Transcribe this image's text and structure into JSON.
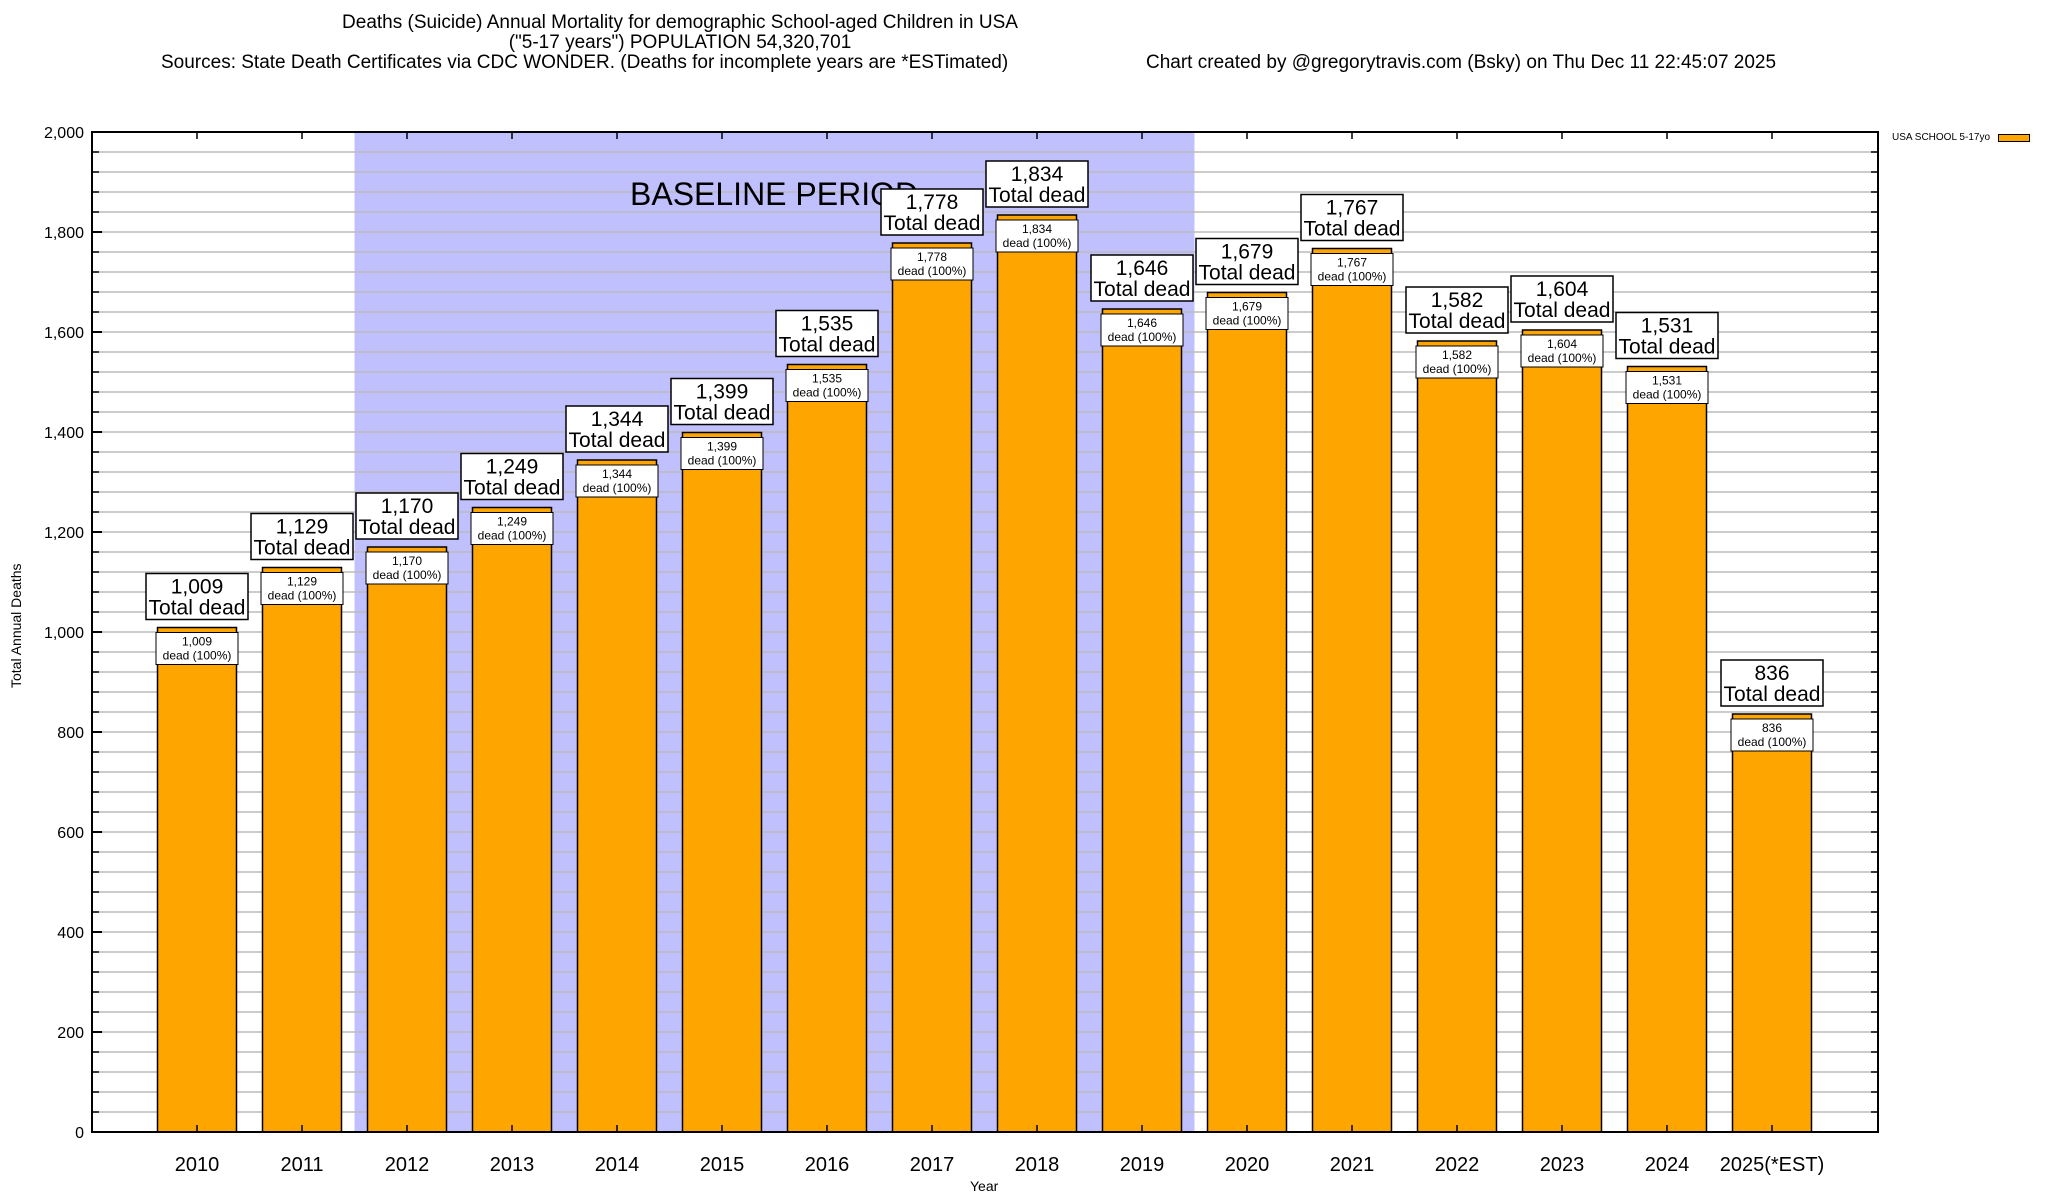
{
  "chart_data": {
    "type": "bar",
    "title": "Deaths (Suicide) Annual Mortality for demographic School-aged Children in USA",
    "subtitle": "(\"5-17 years\") POPULATION 54,320,701",
    "sources": "Sources: State Death Certificates via CDC WONDER. (Deaths for incomplete years are *ESTimated)",
    "credit": "Chart created by @gregorytravis.com (Bsky) on Thu Dec 11 22:45:07 2025",
    "xlabel": "Year",
    "ylabel": "Total Annual Deaths",
    "ylim": [
      0,
      2000
    ],
    "y_major_ticks": [
      0,
      200,
      400,
      600,
      800,
      1000,
      1200,
      1400,
      1600,
      1800,
      2000
    ],
    "y_tick_labels": [
      "0",
      "200",
      "400",
      "600",
      "800",
      "1,000",
      "1,200",
      "1,400",
      "1,600",
      "1,800",
      "2,000"
    ],
    "y_minor_step": 40,
    "grid": true,
    "legend": {
      "position": "top-right",
      "entries": [
        {
          "label": "USA SCHOOL 5-17yo",
          "color": "#FFA500"
        }
      ]
    },
    "categories": [
      "2010",
      "2011",
      "2012",
      "2013",
      "2014",
      "2015",
      "2016",
      "2017",
      "2018",
      "2019",
      "2020",
      "2021",
      "2022",
      "2023",
      "2024",
      "2025(*EST)"
    ],
    "series": [
      {
        "name": "USA SCHOOL 5-17yo",
        "color": "#FFA500",
        "values": [
          1009,
          1129,
          1170,
          1249,
          1344,
          1399,
          1535,
          1778,
          1834,
          1646,
          1679,
          1767,
          1582,
          1604,
          1531,
          836
        ]
      }
    ],
    "total_labels": [
      "1,009",
      "1,129",
      "1,170",
      "1,249",
      "1,344",
      "1,399",
      "1,535",
      "1,778",
      "1,834",
      "1,646",
      "1,679",
      "1,767",
      "1,582",
      "1,604",
      "1,531",
      "836"
    ],
    "total_suffix": "Total dead",
    "inner_suffix": "dead (100%)",
    "annotation": {
      "text": "BASELINE PERIOD",
      "start_category": "2012",
      "end_category": "2019",
      "color": "#C0C0FF"
    }
  }
}
